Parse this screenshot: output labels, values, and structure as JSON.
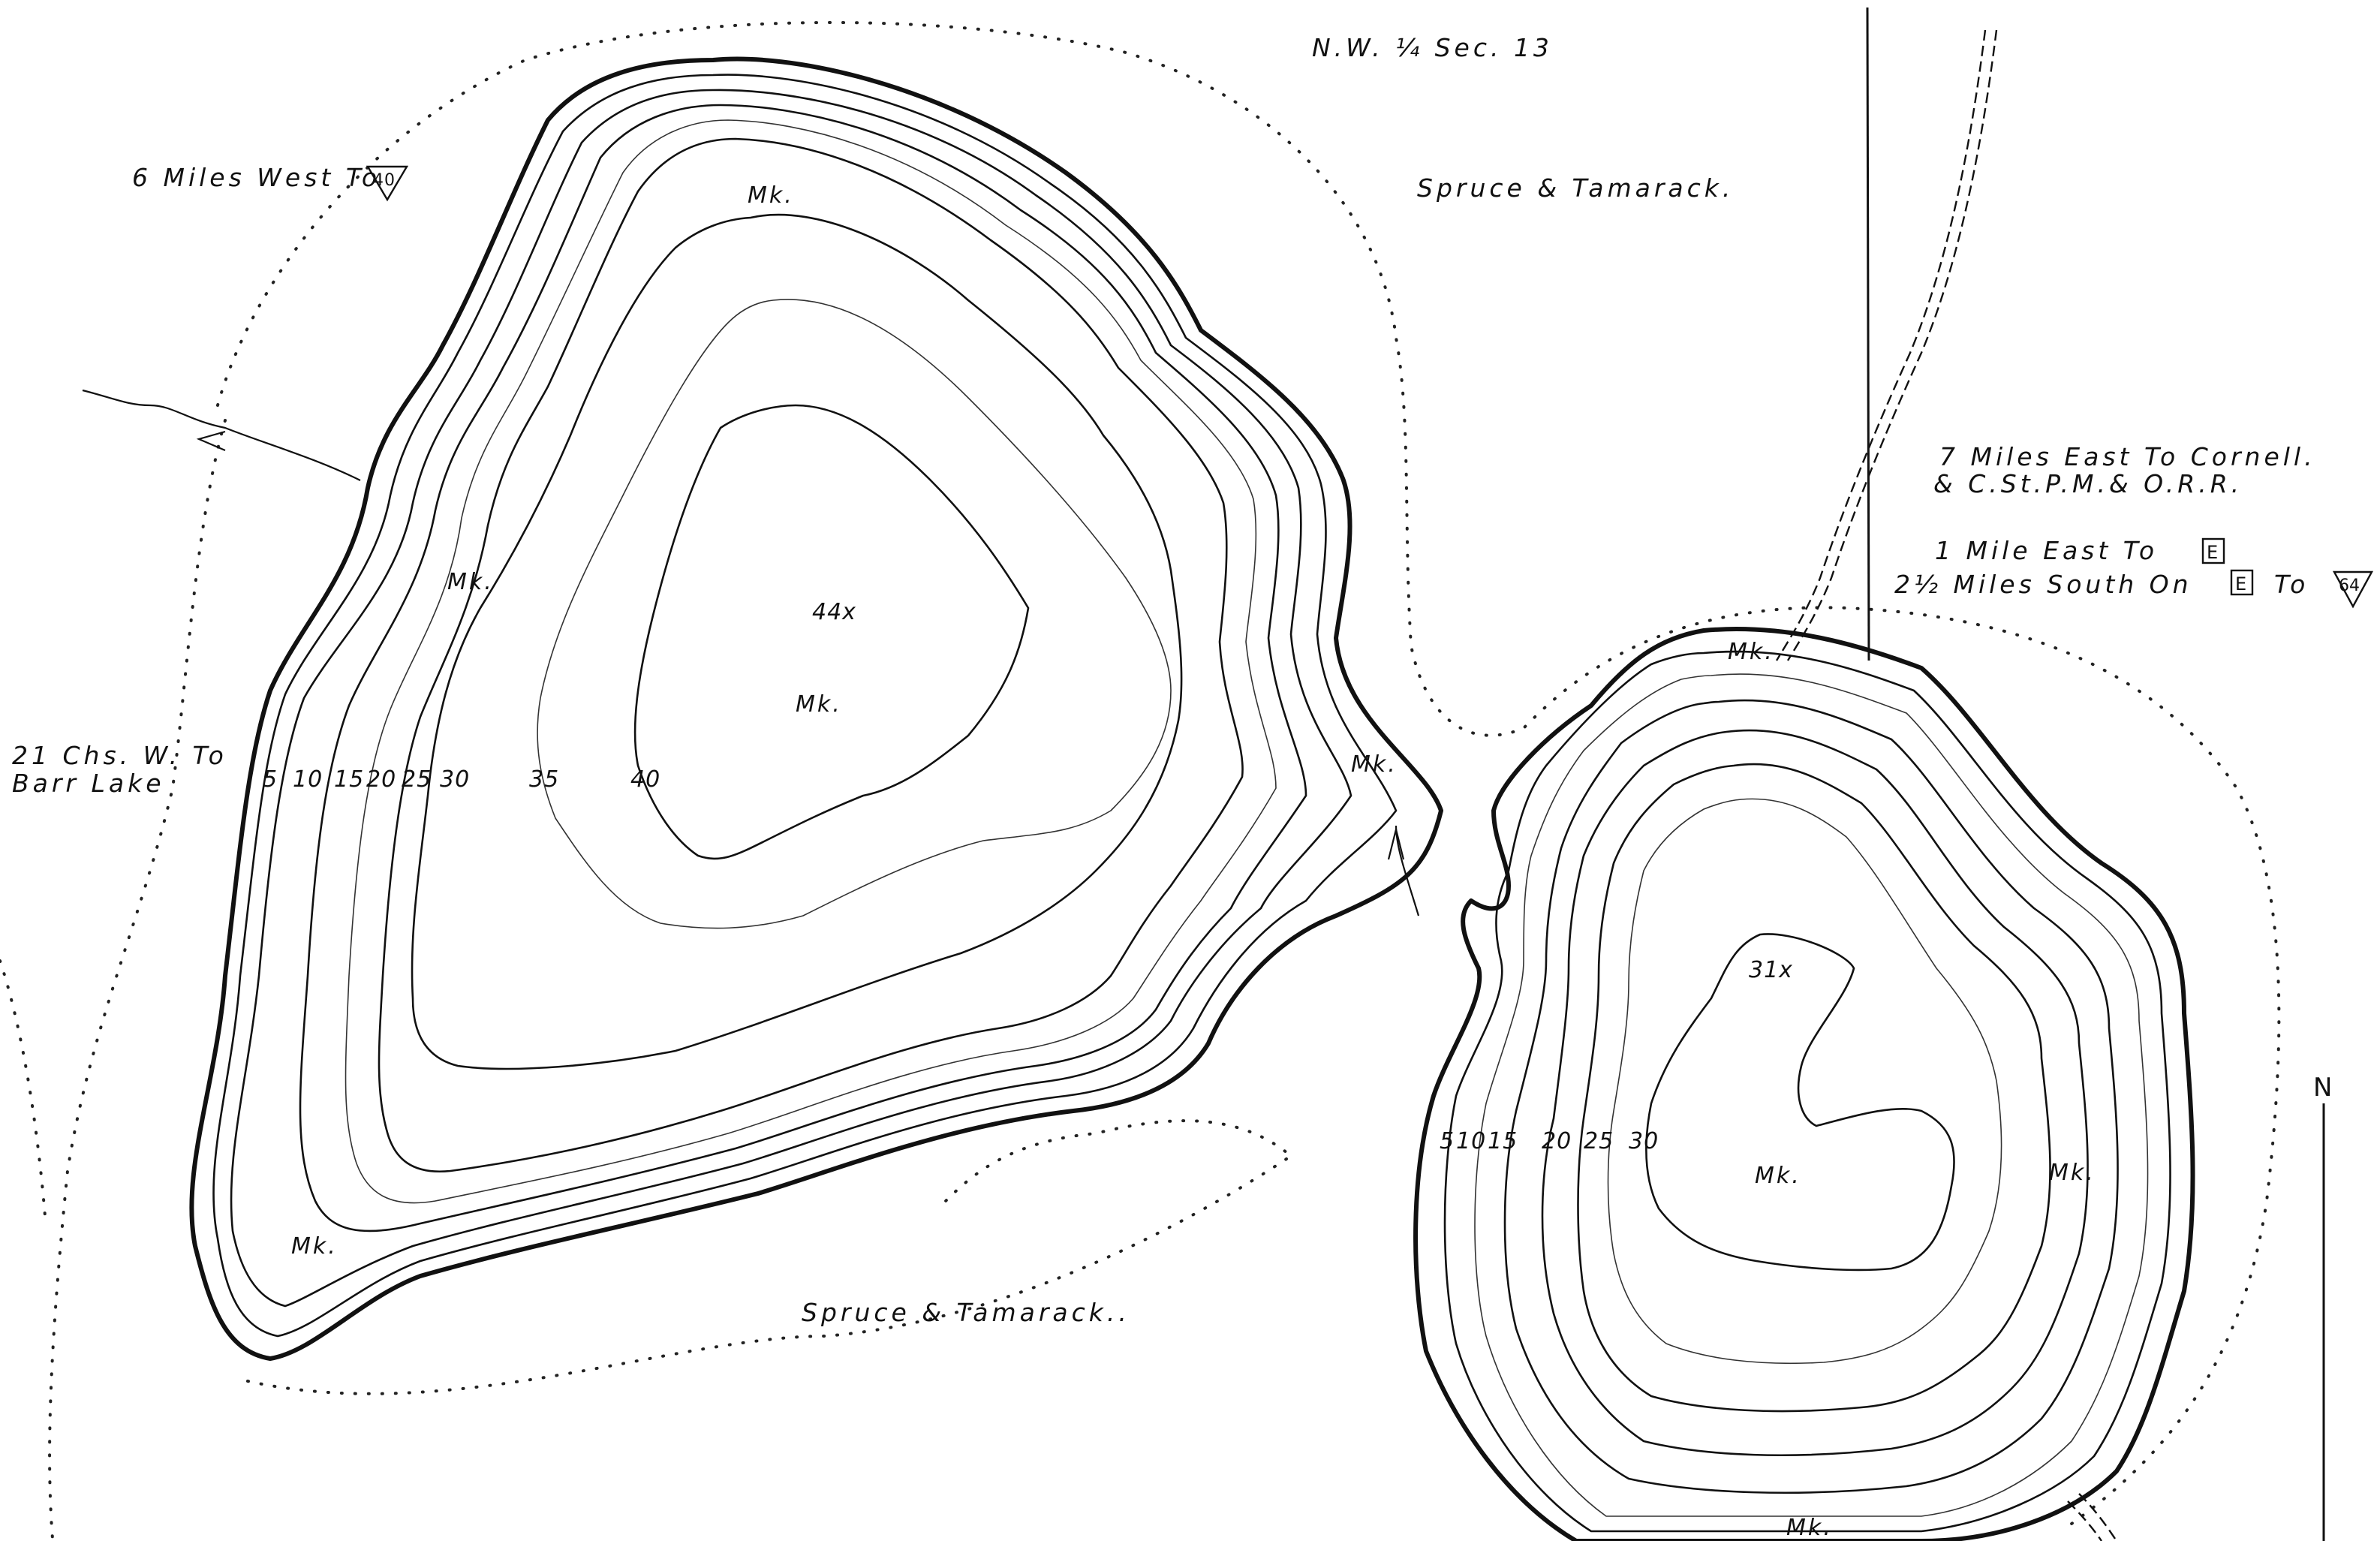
{
  "labels": {
    "section": "N.W. ¼ Sec. 13",
    "veg_north": "Spruce & Tamarack.",
    "veg_south": "Spruce & Tamarack..",
    "west_road_text": "6 Miles West To",
    "west_road_route": "40",
    "barr_line1": "21 Chs. W. To",
    "barr_line2": "Barr Lake",
    "cornell_line1": "7 Miles East To Cornell.",
    "cornell_line2": "& C.St.P.M.& O.R.R.",
    "east_line1_text": "1 Mile East To",
    "east_line1_route": "E",
    "east_line2_a": "2½ Miles South On",
    "east_line2_route": "E",
    "east_line2_b": "To",
    "east_line2_route2": "64",
    "north_arrow": "N"
  },
  "west_lake": {
    "depth_labels": [
      "5",
      "10",
      "15",
      "20",
      "25",
      "30",
      "35",
      "40"
    ],
    "max_depth": "44x",
    "bottom_labels": [
      "Mk.",
      "Mk.",
      "Mk.",
      "Mk."
    ]
  },
  "east_lake": {
    "depth_labels": [
      "5",
      "10",
      "15",
      "20",
      "25",
      "30"
    ],
    "max_depth": "31x",
    "bottom_labels": [
      "Mk.",
      "Mk.",
      "Mk.",
      "Mk."
    ]
  },
  "channel_label": "Mk."
}
